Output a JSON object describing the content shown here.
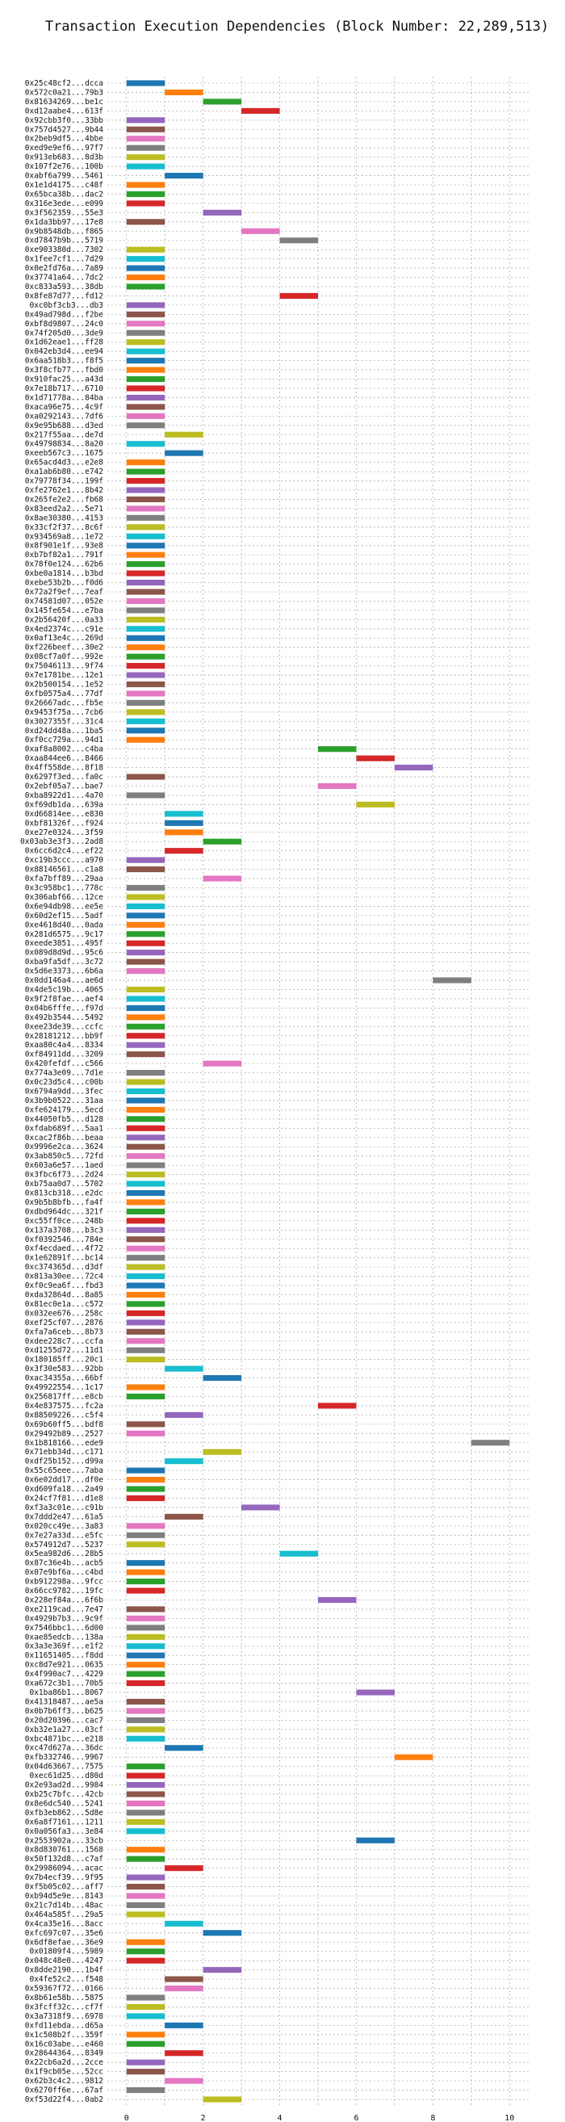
{
  "chart_data": {
    "type": "bar",
    "orientation": "horizontal",
    "title": "Transaction Execution Dependencies (Block Number: 22,289,513)",
    "xlabel": "",
    "ylabel": "",
    "xlim": [
      -0.5,
      10.5
    ],
    "xticks": [
      0,
      2,
      4,
      6,
      8,
      10
    ],
    "grid": true,
    "palette": [
      "#1f77b4",
      "#ff7f0e",
      "#2ca02c",
      "#d62728",
      "#9467bd",
      "#8c564b",
      "#e377c2",
      "#7f7f7f",
      "#bcbd22",
      "#17becf"
    ],
    "transactions": [
      {
        "label": "0x25c48cf2...dcca",
        "start": 0
      },
      {
        "label": "0x572c0a21...79b3",
        "start": 1
      },
      {
        "label": "0x81634269...be1c",
        "start": 2
      },
      {
        "label": "0xd12aabe4...613f",
        "start": 3
      },
      {
        "label": "0x92cbb3f0...33bb",
        "start": 0
      },
      {
        "label": "0x757d4527...9b44",
        "start": 0
      },
      {
        "label": "0x2beb9df5...4bbe",
        "start": 0
      },
      {
        "label": "0xed9e9ef6...97f7",
        "start": 0
      },
      {
        "label": "0x913eb683...8d3b",
        "start": 0
      },
      {
        "label": "0x107f2e76...100b",
        "start": 0
      },
      {
        "label": "0xabf6a799...5461",
        "start": 1
      },
      {
        "label": "0x1e1d4175...c48f",
        "start": 0
      },
      {
        "label": "0x65bca38b...dac2",
        "start": 0
      },
      {
        "label": "0x316e3ede...e099",
        "start": 0
      },
      {
        "label": "0x3f562359...55e3",
        "start": 2
      },
      {
        "label": "0x1da3bb97...17e8",
        "start": 0
      },
      {
        "label": "0x9b8548db...f865",
        "start": 3
      },
      {
        "label": "0xd7847b9b...5719",
        "start": 4
      },
      {
        "label": "0xe903380d...7302",
        "start": 0
      },
      {
        "label": "0x1fee7cf1...7d29",
        "start": 0
      },
      {
        "label": "0x0e2fd76a...7a89",
        "start": 0
      },
      {
        "label": "0x37741a64...7dc2",
        "start": 0
      },
      {
        "label": "0xc833a593...38db",
        "start": 0
      },
      {
        "label": "0x8fe87d77...fd12",
        "start": 4
      },
      {
        "label": "0xc0bf3cb3...db3",
        "start": 0
      },
      {
        "label": "0x49ad798d...f2be",
        "start": 0
      },
      {
        "label": "0xbf8d9807...24c0",
        "start": 0
      },
      {
        "label": "0x74f205d0...3de9",
        "start": 0
      },
      {
        "label": "0x1d62eae1...ff28",
        "start": 0
      },
      {
        "label": "0x042eb3d4...ee94",
        "start": 0
      },
      {
        "label": "0x6aa518b3...f8f5",
        "start": 0
      },
      {
        "label": "0x3f8cfb77...fbd0",
        "start": 0
      },
      {
        "label": "0x910fac25...a43d",
        "start": 0
      },
      {
        "label": "0x7e18b717...6710",
        "start": 0
      },
      {
        "label": "0x1d71778a...84ba",
        "start": 0
      },
      {
        "label": "0xaca96e75...4c9f",
        "start": 0
      },
      {
        "label": "0xa0292143...7df6",
        "start": 0
      },
      {
        "label": "0x9e95b688...d3ed",
        "start": 0
      },
      {
        "label": "0x217f55aa...de7d",
        "start": 1
      },
      {
        "label": "0x49798834...8a20",
        "start": 0
      },
      {
        "label": "0xeeb567c3...1675",
        "start": 1
      },
      {
        "label": "0x65acd4d3...e2e8",
        "start": 0
      },
      {
        "label": "0xa1ab6b80...e742",
        "start": 0
      },
      {
        "label": "0x79778f34...199f",
        "start": 0
      },
      {
        "label": "0xfe2762e1...8b42",
        "start": 0
      },
      {
        "label": "0x265fe2e2...fb68",
        "start": 0
      },
      {
        "label": "0x83eed2a2...5e71",
        "start": 0
      },
      {
        "label": "0x8ae30380...4153",
        "start": 0
      },
      {
        "label": "0x33cf2f37...8c6f",
        "start": 0
      },
      {
        "label": "0x934569a8...1e72",
        "start": 0
      },
      {
        "label": "0x8f901e1f...93e8",
        "start": 0
      },
      {
        "label": "0xb7bf82a1...791f",
        "start": 0
      },
      {
        "label": "0x78f0e124...62b6",
        "start": 0
      },
      {
        "label": "0xbe0a1814...b3bd",
        "start": 0
      },
      {
        "label": "0xebe53b2b...f0d6",
        "start": 0
      },
      {
        "label": "0x72a2f9ef...7eaf",
        "start": 0
      },
      {
        "label": "0x74581d07...052e",
        "start": 0
      },
      {
        "label": "0x145fe654...e7ba",
        "start": 0
      },
      {
        "label": "0x2b56420f...0a33",
        "start": 0
      },
      {
        "label": "0x4ed2374c...c91e",
        "start": 0
      },
      {
        "label": "0x0af13e4c...269d",
        "start": 0
      },
      {
        "label": "0xf226beef...30e2",
        "start": 0
      },
      {
        "label": "0x08cf7a0f...992e",
        "start": 0
      },
      {
        "label": "0x75046113...9f74",
        "start": 0
      },
      {
        "label": "0x7e1781be...12e1",
        "start": 0
      },
      {
        "label": "0x2b500154...1e52",
        "start": 0
      },
      {
        "label": "0xfb0575a4...77df",
        "start": 0
      },
      {
        "label": "0x26667adc...fb5e",
        "start": 0
      },
      {
        "label": "0x9453f75a...7cb6",
        "start": 0
      },
      {
        "label": "0x3027355f...31c4",
        "start": 0
      },
      {
        "label": "0xd24dd48a...1ba5",
        "start": 0
      },
      {
        "label": "0xf0cc729a...94d1",
        "start": 0
      },
      {
        "label": "0xaf8a8002...c4ba",
        "start": 5
      },
      {
        "label": "0xaa844ee6...8466",
        "start": 6
      },
      {
        "label": "0x4ff558de...8f18",
        "start": 7
      },
      {
        "label": "0x6297f3ed...fa0c",
        "start": 0
      },
      {
        "label": "0x2ebf05a7...bae7",
        "start": 5
      },
      {
        "label": "0xba8922d1...4a70",
        "start": 0
      },
      {
        "label": "0xf69db1da...639a",
        "start": 6
      },
      {
        "label": "0xd66814ee...e830",
        "start": 1
      },
      {
        "label": "0xbf81326f...f924",
        "start": 1
      },
      {
        "label": "0xe27e0324...3f59",
        "start": 1
      },
      {
        "label": "0x03ab3e3f3...2ad8",
        "start": 2
      },
      {
        "label": "0x6cc6d2c4...ef22",
        "start": 1
      },
      {
        "label": "0xc19b3ccc...a970",
        "start": 0
      },
      {
        "label": "0x88146561...c1a8",
        "start": 0
      },
      {
        "label": "0xfa7bff89...29aa",
        "start": 2
      },
      {
        "label": "0x3c958bc1...778c",
        "start": 0
      },
      {
        "label": "0x306abf66...12ce",
        "start": 0
      },
      {
        "label": "0x6e94db98...ee5e",
        "start": 0
      },
      {
        "label": "0x60d2ef15...5adf",
        "start": 0
      },
      {
        "label": "0xe4618d40...0ada",
        "start": 0
      },
      {
        "label": "0x281d6575...9c17",
        "start": 0
      },
      {
        "label": "0xeede3851...495f",
        "start": 0
      },
      {
        "label": "0x089d8d9d...95c6",
        "start": 0
      },
      {
        "label": "0xba9fa5df...3c72",
        "start": 0
      },
      {
        "label": "0x5d6e3373...6b6a",
        "start": 0
      },
      {
        "label": "0x0dd146a4...ae6d",
        "start": 8
      },
      {
        "label": "0x4de5c19b...4065",
        "start": 0
      },
      {
        "label": "0x9f2f8fae...aef4",
        "start": 0
      },
      {
        "label": "0x04b6fffe...f97d",
        "start": 0
      },
      {
        "label": "0x492b3544...5492",
        "start": 0
      },
      {
        "label": "0xee23de39...ccfc",
        "start": 0
      },
      {
        "label": "0x28181212...bb9f",
        "start": 0
      },
      {
        "label": "0xaa80c4a4...8334",
        "start": 0
      },
      {
        "label": "0xf84911dd...3209",
        "start": 0
      },
      {
        "label": "0x420fefdf...c566",
        "start": 2
      },
      {
        "label": "0x774a3e09...7d1e",
        "start": 0
      },
      {
        "label": "0x0c23d5c4...c00b",
        "start": 0
      },
      {
        "label": "0x6794a9dd...3fec",
        "start": 0
      },
      {
        "label": "0x3b9b0522...31aa",
        "start": 0
      },
      {
        "label": "0xfe624179...5ecd",
        "start": 0
      },
      {
        "label": "0x44050fb5...d128",
        "start": 0
      },
      {
        "label": "0xfdab689f...5aa1",
        "start": 0
      },
      {
        "label": "0xcac2f86b...beaa",
        "start": 0
      },
      {
        "label": "0x9996e2ca...3624",
        "start": 0
      },
      {
        "label": "0x3ab850c5...72fd",
        "start": 0
      },
      {
        "label": "0x603a6e57...1aed",
        "start": 0
      },
      {
        "label": "0x3fbc6f73...2d24",
        "start": 0
      },
      {
        "label": "0xb75aa0d7...5702",
        "start": 0
      },
      {
        "label": "0x813cb318...e2dc",
        "start": 0
      },
      {
        "label": "0x9b5b8bfb...fa4f",
        "start": 0
      },
      {
        "label": "0xdbd964dc...321f",
        "start": 0
      },
      {
        "label": "0xc55ff0ce...248b",
        "start": 0
      },
      {
        "label": "0x137a3708...b3c3",
        "start": 0
      },
      {
        "label": "0xf0392546...784e",
        "start": 0
      },
      {
        "label": "0xf4ecdaed...4f72",
        "start": 0
      },
      {
        "label": "0x1e62891f...bc14",
        "start": 0
      },
      {
        "label": "0xc374365d...d3df",
        "start": 0
      },
      {
        "label": "0x813a30ee...72c4",
        "start": 0
      },
      {
        "label": "0xf0c9ea6f...fbd3",
        "start": 0
      },
      {
        "label": "0xda32864d...8a85",
        "start": 0
      },
      {
        "label": "0x81ec0e1a...c572",
        "start": 0
      },
      {
        "label": "0x032ee676...258c",
        "start": 0
      },
      {
        "label": "0xef25cf07...2876",
        "start": 0
      },
      {
        "label": "0xfa7a6ceb...8b73",
        "start": 0
      },
      {
        "label": "0xdee228c7...ccfa",
        "start": 0
      },
      {
        "label": "0xd1255d72...11d1",
        "start": 0
      },
      {
        "label": "0x180185ff...20c1",
        "start": 0
      },
      {
        "label": "0x3f30e583...92bb",
        "start": 1
      },
      {
        "label": "0xac34355a...66bf",
        "start": 2
      },
      {
        "label": "0x49922554...1c17",
        "start": 0
      },
      {
        "label": "0x256817ff...e8cb",
        "start": 0
      },
      {
        "label": "0x4e837575...fc2a",
        "start": 5
      },
      {
        "label": "0x88509226...c5f4",
        "start": 1
      },
      {
        "label": "0x69b60ff5...bdf8",
        "start": 0
      },
      {
        "label": "0x29492b89...2527",
        "start": 0
      },
      {
        "label": "0x1b818166...ede9",
        "start": 9
      },
      {
        "label": "0x71ebb34d...c171",
        "start": 2
      },
      {
        "label": "0xdf25b152...d99a",
        "start": 1
      },
      {
        "label": "0x55c65eee...7aba",
        "start": 0
      },
      {
        "label": "0x6e02dd17...df0e",
        "start": 0
      },
      {
        "label": "0xd609fa18...2a49",
        "start": 0
      },
      {
        "label": "0x24cf7f81...d1e8",
        "start": 0
      },
      {
        "label": "0xf3a3c01e...c91b",
        "start": 3
      },
      {
        "label": "0x7ddd2e47...61a5",
        "start": 1
      },
      {
        "label": "0x020cc49e...3a83",
        "start": 0
      },
      {
        "label": "0x7e27a33d...e5fc",
        "start": 0
      },
      {
        "label": "0x574912d7...5237",
        "start": 0
      },
      {
        "label": "0x5ea982d6...28b5",
        "start": 4
      },
      {
        "label": "0x87c36e4b...acb5",
        "start": 0
      },
      {
        "label": "0x07e9bf6a...c4bd",
        "start": 0
      },
      {
        "label": "0xb912298a...9fcc",
        "start": 0
      },
      {
        "label": "0x66cc9782...19fc",
        "start": 0
      },
      {
        "label": "0x228ef84a...6f6b",
        "start": 5
      },
      {
        "label": "0xe2119cad...7e47",
        "start": 0
      },
      {
        "label": "0x4929b7b3...9c9f",
        "start": 0
      },
      {
        "label": "0x7546bbc1...6d00",
        "start": 0
      },
      {
        "label": "0xae85edcb...138a",
        "start": 0
      },
      {
        "label": "0x3a3e369f...e1f2",
        "start": 0
      },
      {
        "label": "0x11651405...f8dd",
        "start": 0
      },
      {
        "label": "0xc8d7e921...0635",
        "start": 0
      },
      {
        "label": "0x4f990ac7...4229",
        "start": 0
      },
      {
        "label": "0xa672c3b1...70b5",
        "start": 0
      },
      {
        "label": "0x1ba86b1...8067",
        "start": 6
      },
      {
        "label": "0x41318487...ae5a",
        "start": 0
      },
      {
        "label": "0x0b7b6ff3...b625",
        "start": 0
      },
      {
        "label": "0x20d20396...cac7",
        "start": 0
      },
      {
        "label": "0xb32e1a27...03cf",
        "start": 0
      },
      {
        "label": "0xbc4871bc...e218",
        "start": 0
      },
      {
        "label": "0xc47d627a...36dc",
        "start": 1
      },
      {
        "label": "0xfb332746...9967",
        "start": 7
      },
      {
        "label": "0x04d63667...7575",
        "start": 0
      },
      {
        "label": "0xec61d25...d80d",
        "start": 0
      },
      {
        "label": "0x2e93ad2d...9984",
        "start": 0
      },
      {
        "label": "0xb25c7bfc...42cb",
        "start": 0
      },
      {
        "label": "0x8e6dc540...5241",
        "start": 0
      },
      {
        "label": "0xfb3eb862...5d8e",
        "start": 0
      },
      {
        "label": "0x6a8f7161...1211",
        "start": 0
      },
      {
        "label": "0x0a056fa3...3e84",
        "start": 0
      },
      {
        "label": "0x2553902a...33cb",
        "start": 6
      },
      {
        "label": "0x8d830761...1568",
        "start": 0
      },
      {
        "label": "0x50f132d8...c7af",
        "start": 0
      },
      {
        "label": "0x29986094...acac",
        "start": 1
      },
      {
        "label": "0x7b4ecf39...9f95",
        "start": 0
      },
      {
        "label": "0xf5b05c02...aff7",
        "start": 0
      },
      {
        "label": "0xb94d5e9e...8143",
        "start": 0
      },
      {
        "label": "0x21c7d14b...48ac",
        "start": 0
      },
      {
        "label": "0x464a585f...29a5",
        "start": 0
      },
      {
        "label": "0x4ca35e16...8acc",
        "start": 1
      },
      {
        "label": "0xfc697c07...35e6",
        "start": 2
      },
      {
        "label": "0x6df8efae...36e9",
        "start": 0
      },
      {
        "label": "0x01809f4...5989",
        "start": 0
      },
      {
        "label": "0x048c48e0...4247",
        "start": 0
      },
      {
        "label": "0x8dde2190...1b4f",
        "start": 2
      },
      {
        "label": "0x4fe52c2...f548",
        "start": 1
      },
      {
        "label": "0x59367f72...0166",
        "start": 1
      },
      {
        "label": "0x8b61e58b...5875",
        "start": 0
      },
      {
        "label": "0x3fcff32c...cf7f",
        "start": 0
      },
      {
        "label": "0x3a7318f9...6978",
        "start": 0
      },
      {
        "label": "0xfd11ebda...d65a",
        "start": 1
      },
      {
        "label": "0x1c508b2f...359f",
        "start": 0
      },
      {
        "label": "0x16c03abe...e460",
        "start": 0
      },
      {
        "label": "0x28644364...8349",
        "start": 1
      },
      {
        "label": "0x22cb6a2d...2cce",
        "start": 0
      },
      {
        "label": "0x1f9cb05e...52cc",
        "start": 0
      },
      {
        "label": "0x62b3c4c2...9812",
        "start": 1
      },
      {
        "label": "0x6270ff6e...67af",
        "start": 0
      },
      {
        "label": "0xf53d22f4...0ab2",
        "start": 2
      }
    ]
  }
}
